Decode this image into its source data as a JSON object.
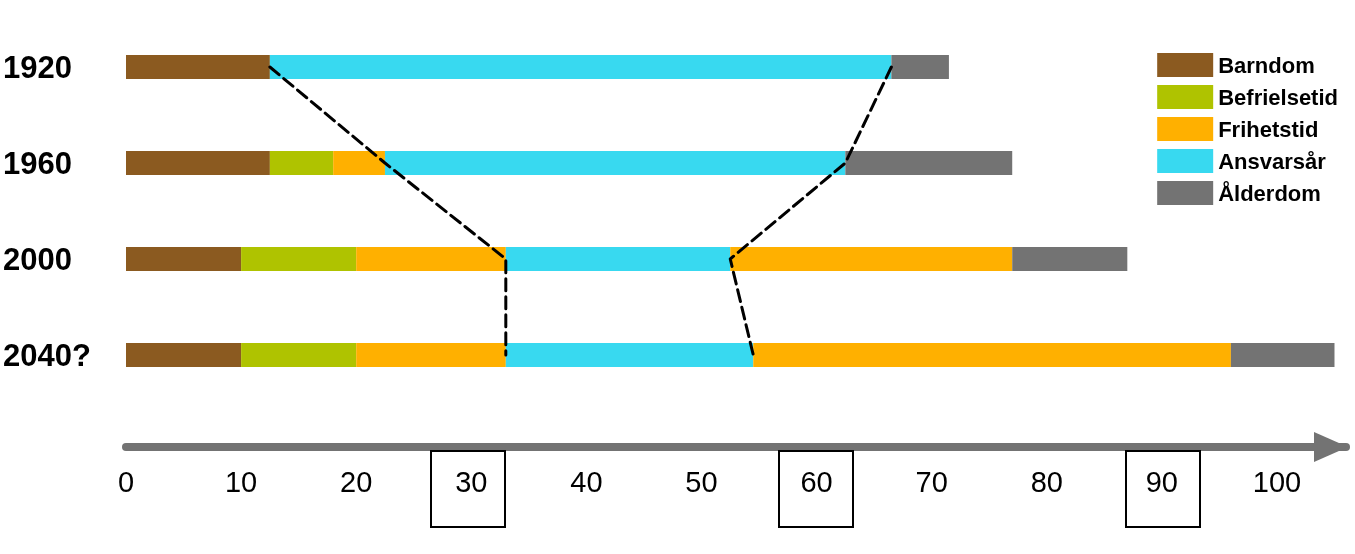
{
  "chart_data": {
    "type": "bar",
    "orientation": "horizontal",
    "stacked": true,
    "categories": [
      "1920",
      "1960",
      "2000",
      "2040?"
    ],
    "xlim": [
      0,
      106
    ],
    "xticks": [
      0,
      10,
      20,
      30,
      40,
      50,
      60,
      70,
      80,
      90,
      100
    ],
    "grid": false,
    "legend": "top right",
    "series": [
      {
        "name": "Barndom",
        "color": "#8b5a20",
        "values": [
          12.5,
          12.5,
          10,
          10
        ]
      },
      {
        "name": "Befrielsetid",
        "color": "#afc300",
        "values": [
          0,
          5.5,
          10,
          10
        ]
      },
      {
        "name": "Frihetstid",
        "color": "#ffb000",
        "values": [
          0,
          4.5,
          13,
          13
        ]
      },
      {
        "name": "Ansvarsår",
        "color": "#38d9f0",
        "values": [
          54,
          40,
          19.5,
          21.5
        ]
      },
      {
        "color": "#ffb000",
        "values": [
          0,
          0,
          24.5,
          41.5
        ]
      },
      {
        "name": "Ålderdom",
        "color": "#737373",
        "values": [
          5,
          14.5,
          10,
          9
        ]
      },
      {
        "type": "line",
        "color": "#000000",
        "line_style": "dashed",
        "marker": "none",
        "values": [
          12.5,
          22.5,
          33,
          33
        ]
      },
      {
        "type": "line",
        "color": "#000000",
        "line_style": "dashed",
        "marker": "none",
        "values": [
          66.5,
          62.5,
          52.5,
          54.5
        ]
      }
    ]
  }
}
